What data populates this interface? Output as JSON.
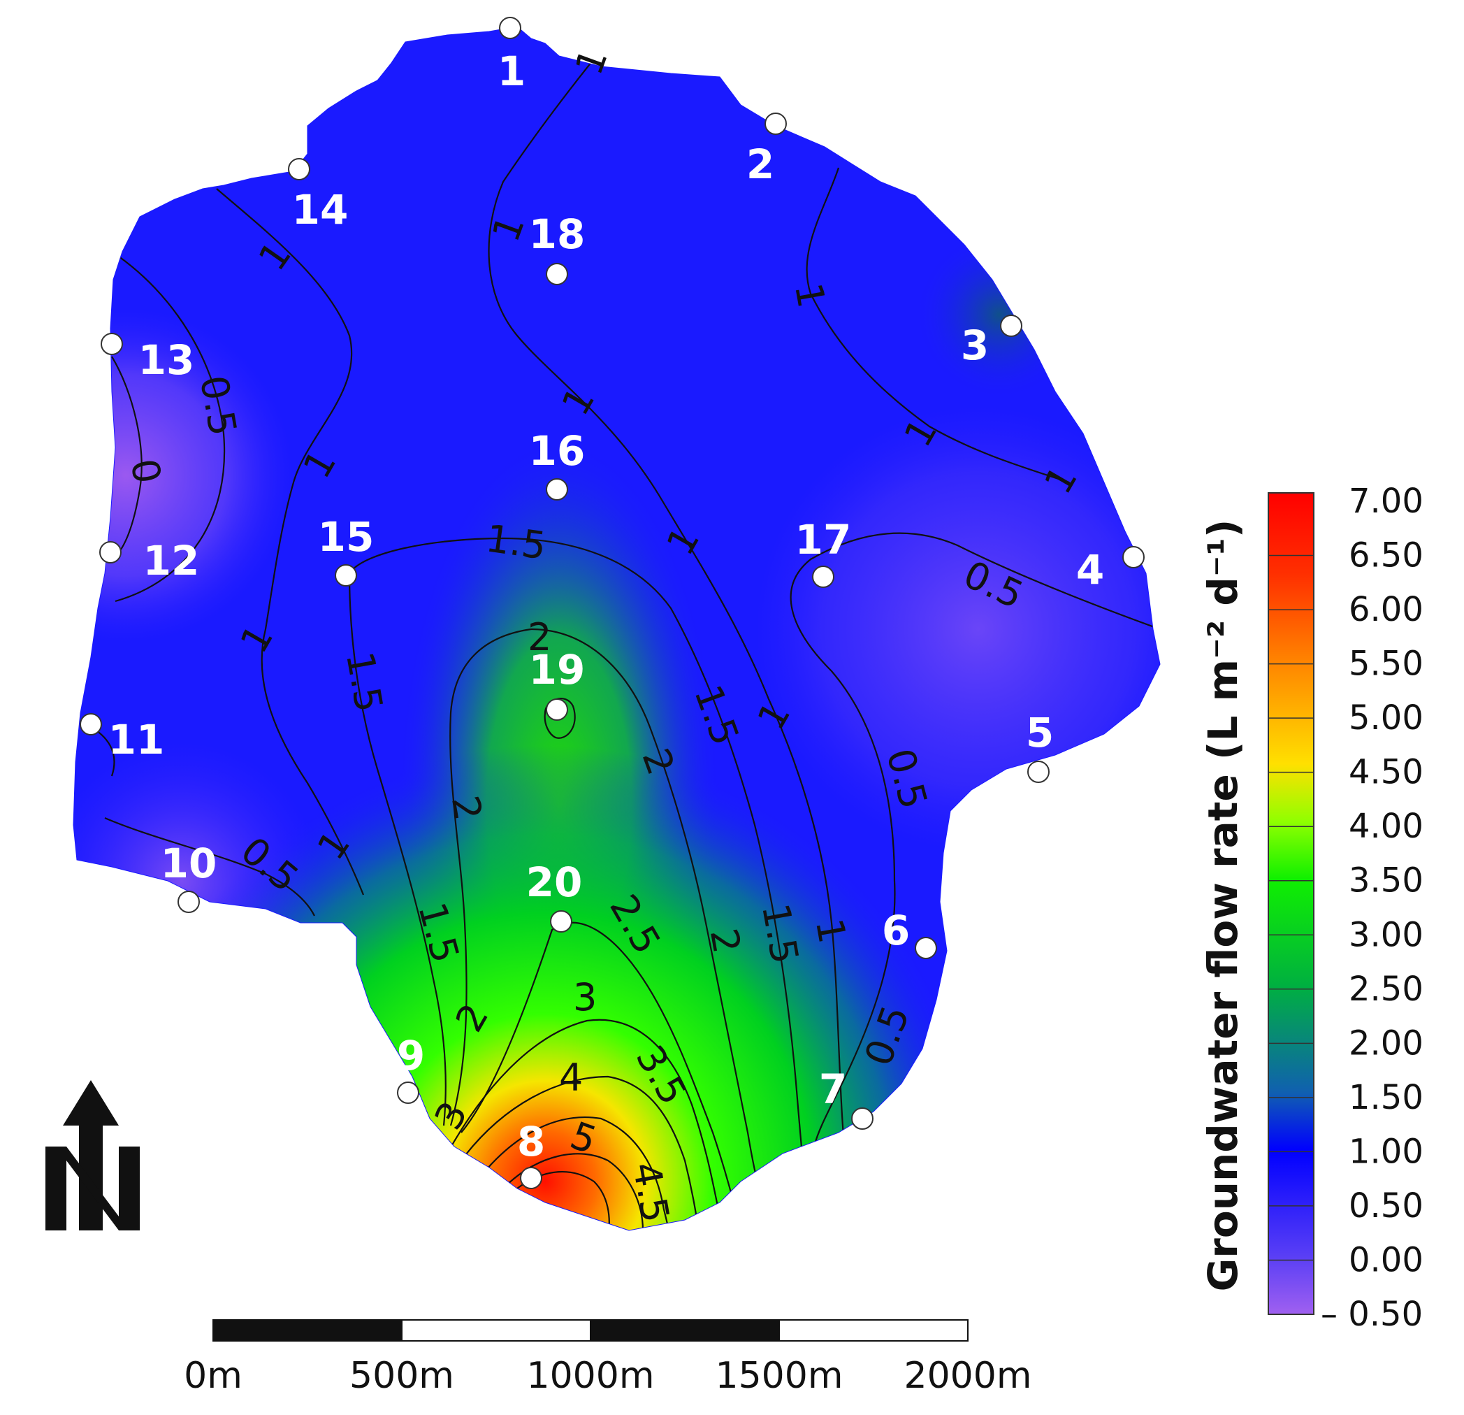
{
  "map": {
    "colors": {
      "low": "#9b59f0",
      "blue": "#1a1aff",
      "mid_blue": "#1f2ef5",
      "green": "#00e000",
      "yellow": "#f5e600",
      "orange": "#ff8000",
      "red": "#ff0000"
    },
    "stations": [
      {
        "id": "1",
        "label": "1"
      },
      {
        "id": "2",
        "label": "2"
      },
      {
        "id": "3",
        "label": "3"
      },
      {
        "id": "4",
        "label": "4"
      },
      {
        "id": "5",
        "label": "5"
      },
      {
        "id": "6",
        "label": "6"
      },
      {
        "id": "7",
        "label": "7"
      },
      {
        "id": "8",
        "label": "8"
      },
      {
        "id": "9",
        "label": "9"
      },
      {
        "id": "10",
        "label": "10"
      },
      {
        "id": "11",
        "label": "11"
      },
      {
        "id": "12",
        "label": "12"
      },
      {
        "id": "13",
        "label": "13"
      },
      {
        "id": "14",
        "label": "14"
      },
      {
        "id": "15",
        "label": "15"
      },
      {
        "id": "16",
        "label": "16"
      },
      {
        "id": "17",
        "label": "17"
      },
      {
        "id": "18",
        "label": "18"
      },
      {
        "id": "19",
        "label": "19"
      },
      {
        "id": "20",
        "label": "20"
      }
    ],
    "contour_labels": {
      "c1": "1",
      "c2": "1",
      "c3": "1",
      "c4": "1",
      "c5": "1",
      "c6": "1",
      "c7": "1",
      "c8": "1",
      "c9": "1",
      "c10": "1",
      "c11": "1",
      "c12": "1",
      "h1": "0.5",
      "h2": "0",
      "h3": "0.5",
      "h4": "0.5",
      "h5": "0.5",
      "h6": "0.5",
      "f1": "1.5",
      "f2": "1.5",
      "f3": "1.5",
      "f4": "1.5",
      "f5": "1.5",
      "t1": "2",
      "t2": "2",
      "t3": "2",
      "t4": "2",
      "t5": "2",
      "g1": "2.5",
      "g2": "3",
      "g3": "3",
      "g4": "3.5",
      "g5": "4",
      "g6": "4.5",
      "g7": "5"
    }
  },
  "legend": {
    "title": "Groundwater flow rate (L m⁻² d⁻¹)",
    "ticks": [
      "7.00",
      "6.50",
      "6.00",
      "5.50",
      "5.00",
      "4.50",
      "4.00",
      "3.50",
      "3.00",
      "2.50",
      "2.00",
      "1.50",
      "1.00",
      "0.50",
      "0.00",
      "– 0.50"
    ]
  },
  "scale_bar": {
    "labels": [
      "0m",
      "500m",
      "1000m",
      "1500m",
      "2000m"
    ]
  }
}
